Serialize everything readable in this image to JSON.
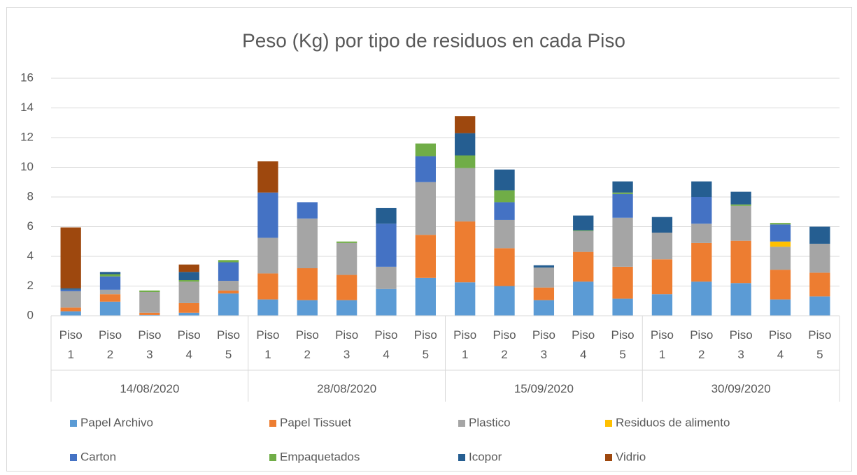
{
  "chart_data": {
    "type": "stacked_bar",
    "title": "Peso (Kg) por tipo de residuos en cada Piso",
    "category_groups": [
      {
        "label": "14/08/2020",
        "categories": [
          "Piso 1",
          "Piso 2",
          "Piso 3",
          "Piso 4",
          "Piso 5"
        ]
      },
      {
        "label": "28/08/2020",
        "categories": [
          "Piso 1",
          "Piso 2",
          "Piso 3",
          "Piso 4",
          "Piso 5"
        ]
      },
      {
        "label": "15/09/2020",
        "categories": [
          "Piso 1",
          "Piso 2",
          "Piso 3",
          "Piso 4",
          "Piso 5"
        ]
      },
      {
        "label": "30/09/2020",
        "categories": [
          "Piso 1",
          "Piso 2",
          "Piso 3",
          "Piso 4",
          "Piso 5"
        ]
      }
    ],
    "series": [
      {
        "name": "Papel Archivo",
        "color": "#5b9bd5",
        "values": [
          0.3,
          0.95,
          0.05,
          0.2,
          1.5,
          1.1,
          1.05,
          1.05,
          1.8,
          2.55,
          2.25,
          2.0,
          1.05,
          2.3,
          1.15,
          1.45,
          2.3,
          2.2,
          1.1,
          1.3
        ]
      },
      {
        "name": "Papel Tissuet",
        "color": "#ed7d31",
        "values": [
          0.25,
          0.5,
          0.15,
          0.65,
          0.2,
          1.75,
          2.15,
          1.7,
          0,
          2.9,
          4.1,
          2.55,
          0.85,
          2.0,
          2.15,
          2.35,
          2.6,
          2.85,
          2.0,
          1.6
        ]
      },
      {
        "name": "Plastico",
        "color": "#a5a5a5",
        "values": [
          1.1,
          0.3,
          1.4,
          1.45,
          0.65,
          2.4,
          3.35,
          2.15,
          1.5,
          3.55,
          3.6,
          1.9,
          1.35,
          1.4,
          3.3,
          1.8,
          1.3,
          2.35,
          1.55,
          1.95
        ]
      },
      {
        "name": "Residuos de alimento",
        "color": "#ffc000",
        "values": [
          0,
          0,
          0,
          0,
          0,
          0,
          0,
          0,
          0,
          0,
          0,
          0,
          0,
          0,
          0,
          0,
          0,
          0,
          0.35,
          0
        ]
      },
      {
        "name": "Carton",
        "color": "#4472c4",
        "values": [
          0.1,
          0.9,
          0,
          0,
          1.25,
          3.05,
          1.1,
          0,
          2.9,
          1.75,
          0,
          1.2,
          0,
          0,
          1.6,
          0,
          1.8,
          0,
          1.15,
          0
        ]
      },
      {
        "name": "Empaquetados",
        "color": "#70ad47",
        "values": [
          0,
          0.15,
          0.1,
          0.1,
          0.15,
          0,
          0,
          0.1,
          0,
          0.85,
          0.85,
          0.8,
          0,
          0.05,
          0.1,
          0,
          0,
          0.1,
          0.1,
          0
        ]
      },
      {
        "name": "Icopor",
        "color": "#255e91",
        "values": [
          0.1,
          0.15,
          0,
          0.55,
          0,
          0,
          0,
          0,
          1.05,
          0,
          1.5,
          1.4,
          0.15,
          1.0,
          0.75,
          1.05,
          1.05,
          0.85,
          0,
          1.15
        ]
      },
      {
        "name": "Vidrio",
        "color": "#9e480e",
        "values": [
          4.1,
          0,
          0,
          0.5,
          0,
          2.1,
          0,
          0,
          0,
          0,
          1.15,
          0,
          0,
          0,
          0,
          0,
          0,
          0,
          0,
          0
        ]
      }
    ],
    "ylim": [
      0,
      16
    ],
    "yticks": [
      0,
      2,
      4,
      6,
      8,
      10,
      12,
      14,
      16
    ],
    "grid": true,
    "legend": "bottom"
  }
}
